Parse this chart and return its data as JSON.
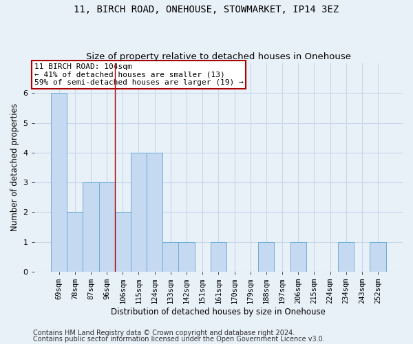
{
  "title": "11, BIRCH ROAD, ONEHOUSE, STOWMARKET, IP14 3EZ",
  "subtitle": "Size of property relative to detached houses in Onehouse",
  "xlabel": "Distribution of detached houses by size in Onehouse",
  "ylabel": "Number of detached properties",
  "categories": [
    "69sqm",
    "78sqm",
    "87sqm",
    "96sqm",
    "106sqm",
    "115sqm",
    "124sqm",
    "133sqm",
    "142sqm",
    "151sqm",
    "161sqm",
    "170sqm",
    "179sqm",
    "188sqm",
    "197sqm",
    "206sqm",
    "215sqm",
    "224sqm",
    "234sqm",
    "243sqm",
    "252sqm"
  ],
  "values": [
    6,
    2,
    3,
    3,
    2,
    4,
    4,
    1,
    1,
    0,
    1,
    0,
    0,
    1,
    0,
    1,
    0,
    0,
    1,
    0,
    1
  ],
  "bar_color": "#c5d9f0",
  "bar_edge_color": "#6baed6",
  "vline_index": 3.5,
  "annotation_text": "11 BIRCH ROAD: 104sqm\n← 41% of detached houses are smaller (13)\n59% of semi-detached houses are larger (19) →",
  "annotation_box_color": "#ffffff",
  "annotation_box_edge_color": "#aa0000",
  "vline_color": "#aa0000",
  "grid_color": "#c8d8e8",
  "ylim": [
    0,
    7
  ],
  "yticks": [
    0,
    1,
    2,
    3,
    4,
    5,
    6
  ],
  "background_color": "#e8f0f8",
  "footer_line1": "Contains HM Land Registry data © Crown copyright and database right 2024.",
  "footer_line2": "Contains public sector information licensed under the Open Government Licence v3.0."
}
